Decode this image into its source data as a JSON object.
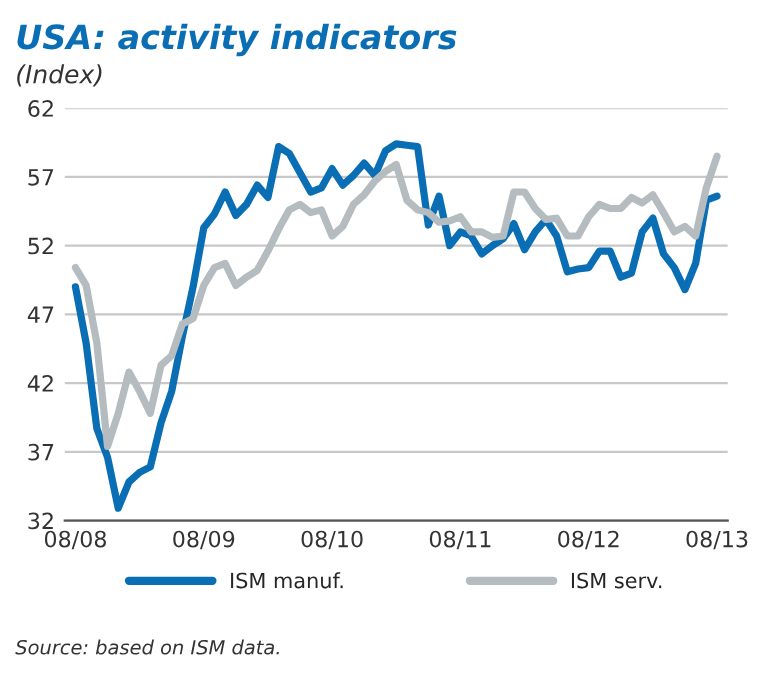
{
  "chart_data": {
    "type": "line",
    "title": "USA: activity indicators",
    "subtitle": "(Index)",
    "annotations": [
      "Source: based on ISM data."
    ],
    "x": [
      "2008-08",
      "2008-09",
      "2008-10",
      "2008-11",
      "2008-12",
      "2009-01",
      "2009-02",
      "2009-03",
      "2009-04",
      "2009-05",
      "2009-06",
      "2009-07",
      "2009-08",
      "2009-09",
      "2009-10",
      "2009-11",
      "2009-12",
      "2010-01",
      "2010-02",
      "2010-03",
      "2010-04",
      "2010-05",
      "2010-06",
      "2010-07",
      "2010-08",
      "2010-09",
      "2010-10",
      "2010-11",
      "2010-12",
      "2011-01",
      "2011-02",
      "2011-03",
      "2011-04",
      "2011-05",
      "2011-06",
      "2011-07",
      "2011-08",
      "2011-09",
      "2011-10",
      "2011-11",
      "2011-12",
      "2012-01",
      "2012-02",
      "2012-03",
      "2012-04",
      "2012-05",
      "2012-06",
      "2012-07",
      "2012-08",
      "2012-09",
      "2012-10",
      "2012-11",
      "2012-12",
      "2013-01",
      "2013-02",
      "2013-03",
      "2013-04",
      "2013-05",
      "2013-06",
      "2013-07",
      "2013-08"
    ],
    "xlim": [
      "2008-07",
      "2013-09"
    ],
    "xticks": [
      {
        "value": "2008-08",
        "label": "08/08"
      },
      {
        "value": "2009-08",
        "label": "08/09"
      },
      {
        "value": "2010-08",
        "label": "08/10"
      },
      {
        "value": "2011-08",
        "label": "08/11"
      },
      {
        "value": "2012-08",
        "label": "08/12"
      },
      {
        "value": "2013-08",
        "label": "08/13"
      }
    ],
    "ylim": [
      32,
      62
    ],
    "yticks": [
      32,
      37,
      42,
      47,
      52,
      57,
      62
    ],
    "grid": "y",
    "legend": "bottom",
    "line_style": "solid",
    "marker": "none",
    "series": [
      {
        "name": "ISM manuf.",
        "color": "#0a6eb4",
        "values": [
          49.0,
          44.9,
          38.7,
          36.6,
          32.9,
          34.8,
          35.5,
          35.9,
          39.1,
          41.4,
          45.4,
          49.0,
          53.3,
          54.3,
          55.9,
          54.2,
          55.0,
          56.4,
          55.5,
          59.2,
          58.7,
          57.3,
          55.9,
          56.2,
          57.6,
          56.4,
          57.1,
          58.0,
          57.1,
          58.9,
          59.4,
          59.3,
          59.2,
          53.5,
          55.6,
          52.0,
          53.0,
          52.7,
          51.4,
          52.0,
          52.5,
          53.6,
          51.7,
          53.0,
          53.9,
          52.7,
          50.1,
          50.3,
          50.4,
          51.6,
          51.6,
          49.7,
          50.0,
          53.0,
          54.0,
          51.4,
          50.4,
          48.8,
          50.7,
          55.3,
          55.6
        ]
      },
      {
        "name": "ISM serv.",
        "color": "#b4bcc0",
        "values": [
          50.4,
          49.1,
          44.9,
          37.4,
          39.8,
          42.8,
          41.4,
          39.8,
          43.3,
          44.0,
          46.3,
          46.7,
          49.1,
          50.4,
          50.7,
          49.1,
          49.7,
          50.2,
          51.6,
          53.2,
          54.6,
          55.0,
          54.4,
          54.6,
          52.7,
          53.4,
          55.0,
          55.7,
          56.7,
          57.4,
          57.9,
          55.3,
          54.6,
          54.4,
          53.7,
          53.8,
          54.1,
          53.0,
          53.0,
          52.6,
          52.7,
          55.9,
          55.9,
          54.7,
          53.9,
          54.0,
          52.7,
          52.7,
          54.1,
          55.0,
          54.7,
          54.7,
          55.5,
          55.1,
          55.7,
          54.4,
          53.0,
          53.4,
          52.7,
          56.2,
          58.5
        ]
      }
    ]
  }
}
